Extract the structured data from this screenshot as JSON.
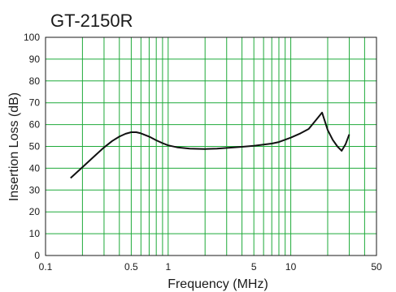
{
  "chart_data": {
    "type": "line",
    "title": "GT-2150R",
    "xlabel": "Frequency (MHz)",
    "ylabel": "Insertion Loss (dB)",
    "x_scale": "log",
    "xlim": [
      0.1,
      50
    ],
    "ylim": [
      0,
      100
    ],
    "x_ticks": [
      {
        "value": 0.1,
        "label": "0.1"
      },
      {
        "value": 0.5,
        "label": "0.5"
      },
      {
        "value": 1,
        "label": "1"
      },
      {
        "value": 5,
        "label": "5"
      },
      {
        "value": 10,
        "label": "10"
      },
      {
        "value": 50,
        "label": "50"
      }
    ],
    "y_ticks": [
      0,
      10,
      20,
      30,
      40,
      50,
      60,
      70,
      80,
      90,
      100
    ],
    "x_grid": [
      0.1,
      0.2,
      0.3,
      0.4,
      0.5,
      0.6,
      0.7,
      0.8,
      0.9,
      1,
      2,
      3,
      4,
      5,
      6,
      7,
      8,
      9,
      10,
      20,
      30,
      40,
      50
    ],
    "grid": true,
    "colors": {
      "grid": "#1faa3a",
      "line": "#111111"
    },
    "series": [
      {
        "x": [
          0.16,
          0.2,
          0.25,
          0.3,
          0.35,
          0.4,
          0.45,
          0.5,
          0.55,
          0.6,
          0.7,
          0.8,
          0.9,
          1.0,
          1.2,
          1.5,
          2.0,
          2.5,
          3.0,
          4.0,
          5.0,
          7.0,
          8.0,
          10.0,
          12.0,
          14.0,
          16.0,
          18.0,
          20.0,
          22.0,
          24.0,
          26.0,
          28.0,
          30.0
        ],
        "y": [
          35.5,
          40.5,
          45.5,
          49.5,
          52.5,
          54.5,
          55.8,
          56.5,
          56.5,
          56.0,
          54.5,
          52.8,
          51.5,
          50.5,
          49.5,
          49.0,
          48.8,
          49.0,
          49.3,
          49.8,
          50.3,
          51.3,
          52.0,
          54.0,
          56.0,
          58.0,
          62.0,
          65.5,
          57.5,
          53.0,
          50.0,
          48.0,
          51.0,
          55.5
        ]
      }
    ]
  }
}
